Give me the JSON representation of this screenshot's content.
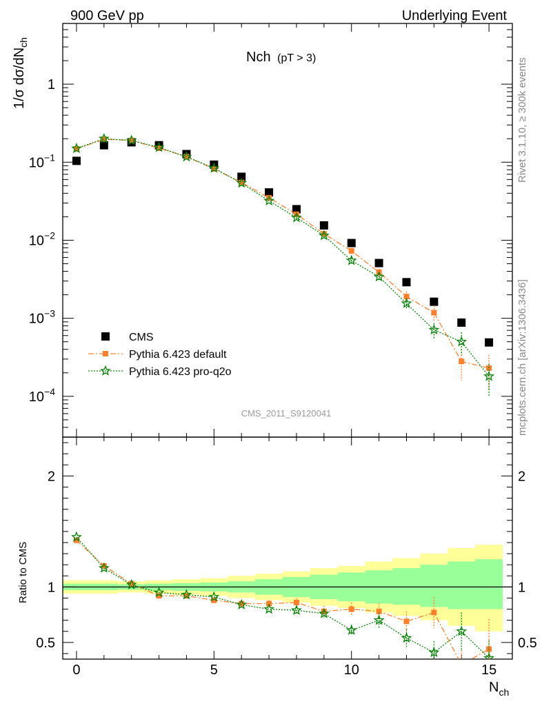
{
  "header": {
    "left": "900 GeV pp",
    "right": "Underlying Event"
  },
  "side": {
    "rivet": "Rivet 3.1.10, ≥ 300k events",
    "mcplots": "mcplots.cern.ch [arXiv:1306.3436]"
  },
  "panel_title": {
    "main": "Nch",
    "sub": "(pT >  3)"
  },
  "watermark": "CMS_2011_S9120041",
  "chart_data": [
    {
      "type": "scatter",
      "panel": "main",
      "yscale": "log",
      "ylabel": {
        "main": "1/σ dσ/dN",
        "sub": "ch"
      },
      "xlabel": {
        "main": "N",
        "sub": "ch"
      },
      "xlim": [
        -0.5,
        15.85
      ],
      "ylim": [
        3e-05,
        6
      ],
      "xticks": [
        0,
        5,
        10,
        15
      ],
      "yticks": [
        {
          "value": 1,
          "label": "1"
        },
        {
          "value": 0.1,
          "base": "10",
          "exp": "−1"
        },
        {
          "value": 0.01,
          "base": "10",
          "exp": "−2"
        },
        {
          "value": 0.001,
          "base": "10",
          "exp": "−3"
        },
        {
          "value": 0.0001,
          "base": "10",
          "exp": "−4"
        }
      ],
      "x": [
        0,
        1,
        2,
        3,
        4,
        5,
        6,
        7,
        8,
        9,
        10,
        11,
        12,
        13,
        14,
        15
      ],
      "series": [
        {
          "name": "CMS",
          "color": "#000000",
          "marker": "square",
          "values": [
            0.104,
            0.165,
            0.18,
            0.165,
            0.127,
            0.093,
            0.065,
            0.041,
            0.025,
            0.0155,
            0.0092,
            0.0051,
            0.0029,
            0.00163,
            0.00088,
            0.00049
          ]
        },
        {
          "name": "Pythia 6.423 default",
          "color": "#ff7f2a",
          "marker": "square-small",
          "line": "dashdot",
          "values": [
            0.148,
            0.197,
            0.19,
            0.151,
            0.118,
            0.082,
            0.055,
            0.035,
            0.0215,
            0.0121,
            0.0073,
            0.0039,
            0.0019,
            0.00118,
            0.00028,
            0.00023
          ],
          "errors": [
            0,
            0,
            0,
            0,
            0,
            0,
            0,
            0,
            0.0015,
            0.0008,
            0.0006,
            0.0004,
            0.0003,
            0.00028,
            0.00012,
            0.00011
          ]
        },
        {
          "name": "Pythia 6.423 pro-q2o",
          "color": "#008000",
          "marker": "star",
          "line": "dotted",
          "values": [
            0.15,
            0.2,
            0.19,
            0.155,
            0.117,
            0.084,
            0.054,
            0.032,
            0.0195,
            0.0115,
            0.0055,
            0.0034,
            0.00155,
            0.00071,
            0.0005,
            0.00018
          ],
          "errors": [
            0,
            0,
            0,
            0,
            0,
            0,
            0,
            0,
            0.0012,
            0.0007,
            0.0005,
            0.0004,
            0.00024,
            0.00016,
            0.00016,
            8e-05
          ]
        }
      ],
      "legend": {
        "position": "bottom-left"
      }
    },
    {
      "type": "scatter",
      "panel": "ratio",
      "ylabel": "Ratio to CMS",
      "xlim": [
        -0.5,
        15.85
      ],
      "ylim": [
        0.35,
        2.35
      ],
      "yticks": [
        0.5,
        1,
        2
      ],
      "x": [
        0,
        1,
        2,
        3,
        4,
        5,
        6,
        7,
        8,
        9,
        10,
        11,
        12,
        13,
        14,
        15
      ],
      "bands": {
        "yellow_hi": [
          1.06,
          1.06,
          1.05,
          1.06,
          1.07,
          1.08,
          1.1,
          1.12,
          1.14,
          1.17,
          1.19,
          1.23,
          1.26,
          1.3,
          1.35,
          1.38
        ],
        "yellow_lo": [
          0.94,
          0.94,
          0.95,
          0.94,
          0.93,
          0.92,
          0.9,
          0.88,
          0.86,
          0.83,
          0.81,
          0.77,
          0.74,
          0.7,
          0.65,
          0.6
        ],
        "green_hi": [
          1.03,
          1.03,
          1.025,
          1.03,
          1.035,
          1.04,
          1.05,
          1.07,
          1.09,
          1.11,
          1.13,
          1.15,
          1.17,
          1.2,
          1.23,
          1.25
        ],
        "green_lo": [
          0.97,
          0.97,
          0.975,
          0.97,
          0.965,
          0.96,
          0.95,
          0.93,
          0.91,
          0.89,
          0.87,
          0.85,
          0.84,
          0.82,
          0.8,
          0.8
        ]
      },
      "series": [
        {
          "name": "Pythia 6.423 default",
          "color": "#ff7f2a",
          "values": [
            1.42,
            1.19,
            1.03,
            0.92,
            0.92,
            0.88,
            0.85,
            0.85,
            0.86,
            0.78,
            0.8,
            0.78,
            0.69,
            0.77,
            0.3,
            0.44
          ],
          "errors": [
            0,
            0,
            0,
            0,
            0,
            0,
            0,
            0.03,
            0.04,
            0.05,
            0.06,
            0.07,
            0.09,
            0.14,
            0.13,
            0.27
          ]
        },
        {
          "name": "Pythia 6.423 pro-q2o",
          "color": "#008000",
          "values": [
            1.45,
            1.17,
            1.02,
            0.95,
            0.93,
            0.91,
            0.84,
            0.8,
            0.79,
            0.76,
            0.61,
            0.7,
            0.54,
            0.41,
            0.6,
            0.36
          ],
          "errors": [
            0,
            0,
            0,
            0,
            0,
            0,
            0,
            0,
            0.03,
            0.04,
            0.05,
            0.07,
            0.08,
            0.1,
            0.17,
            0.16
          ]
        }
      ]
    }
  ]
}
